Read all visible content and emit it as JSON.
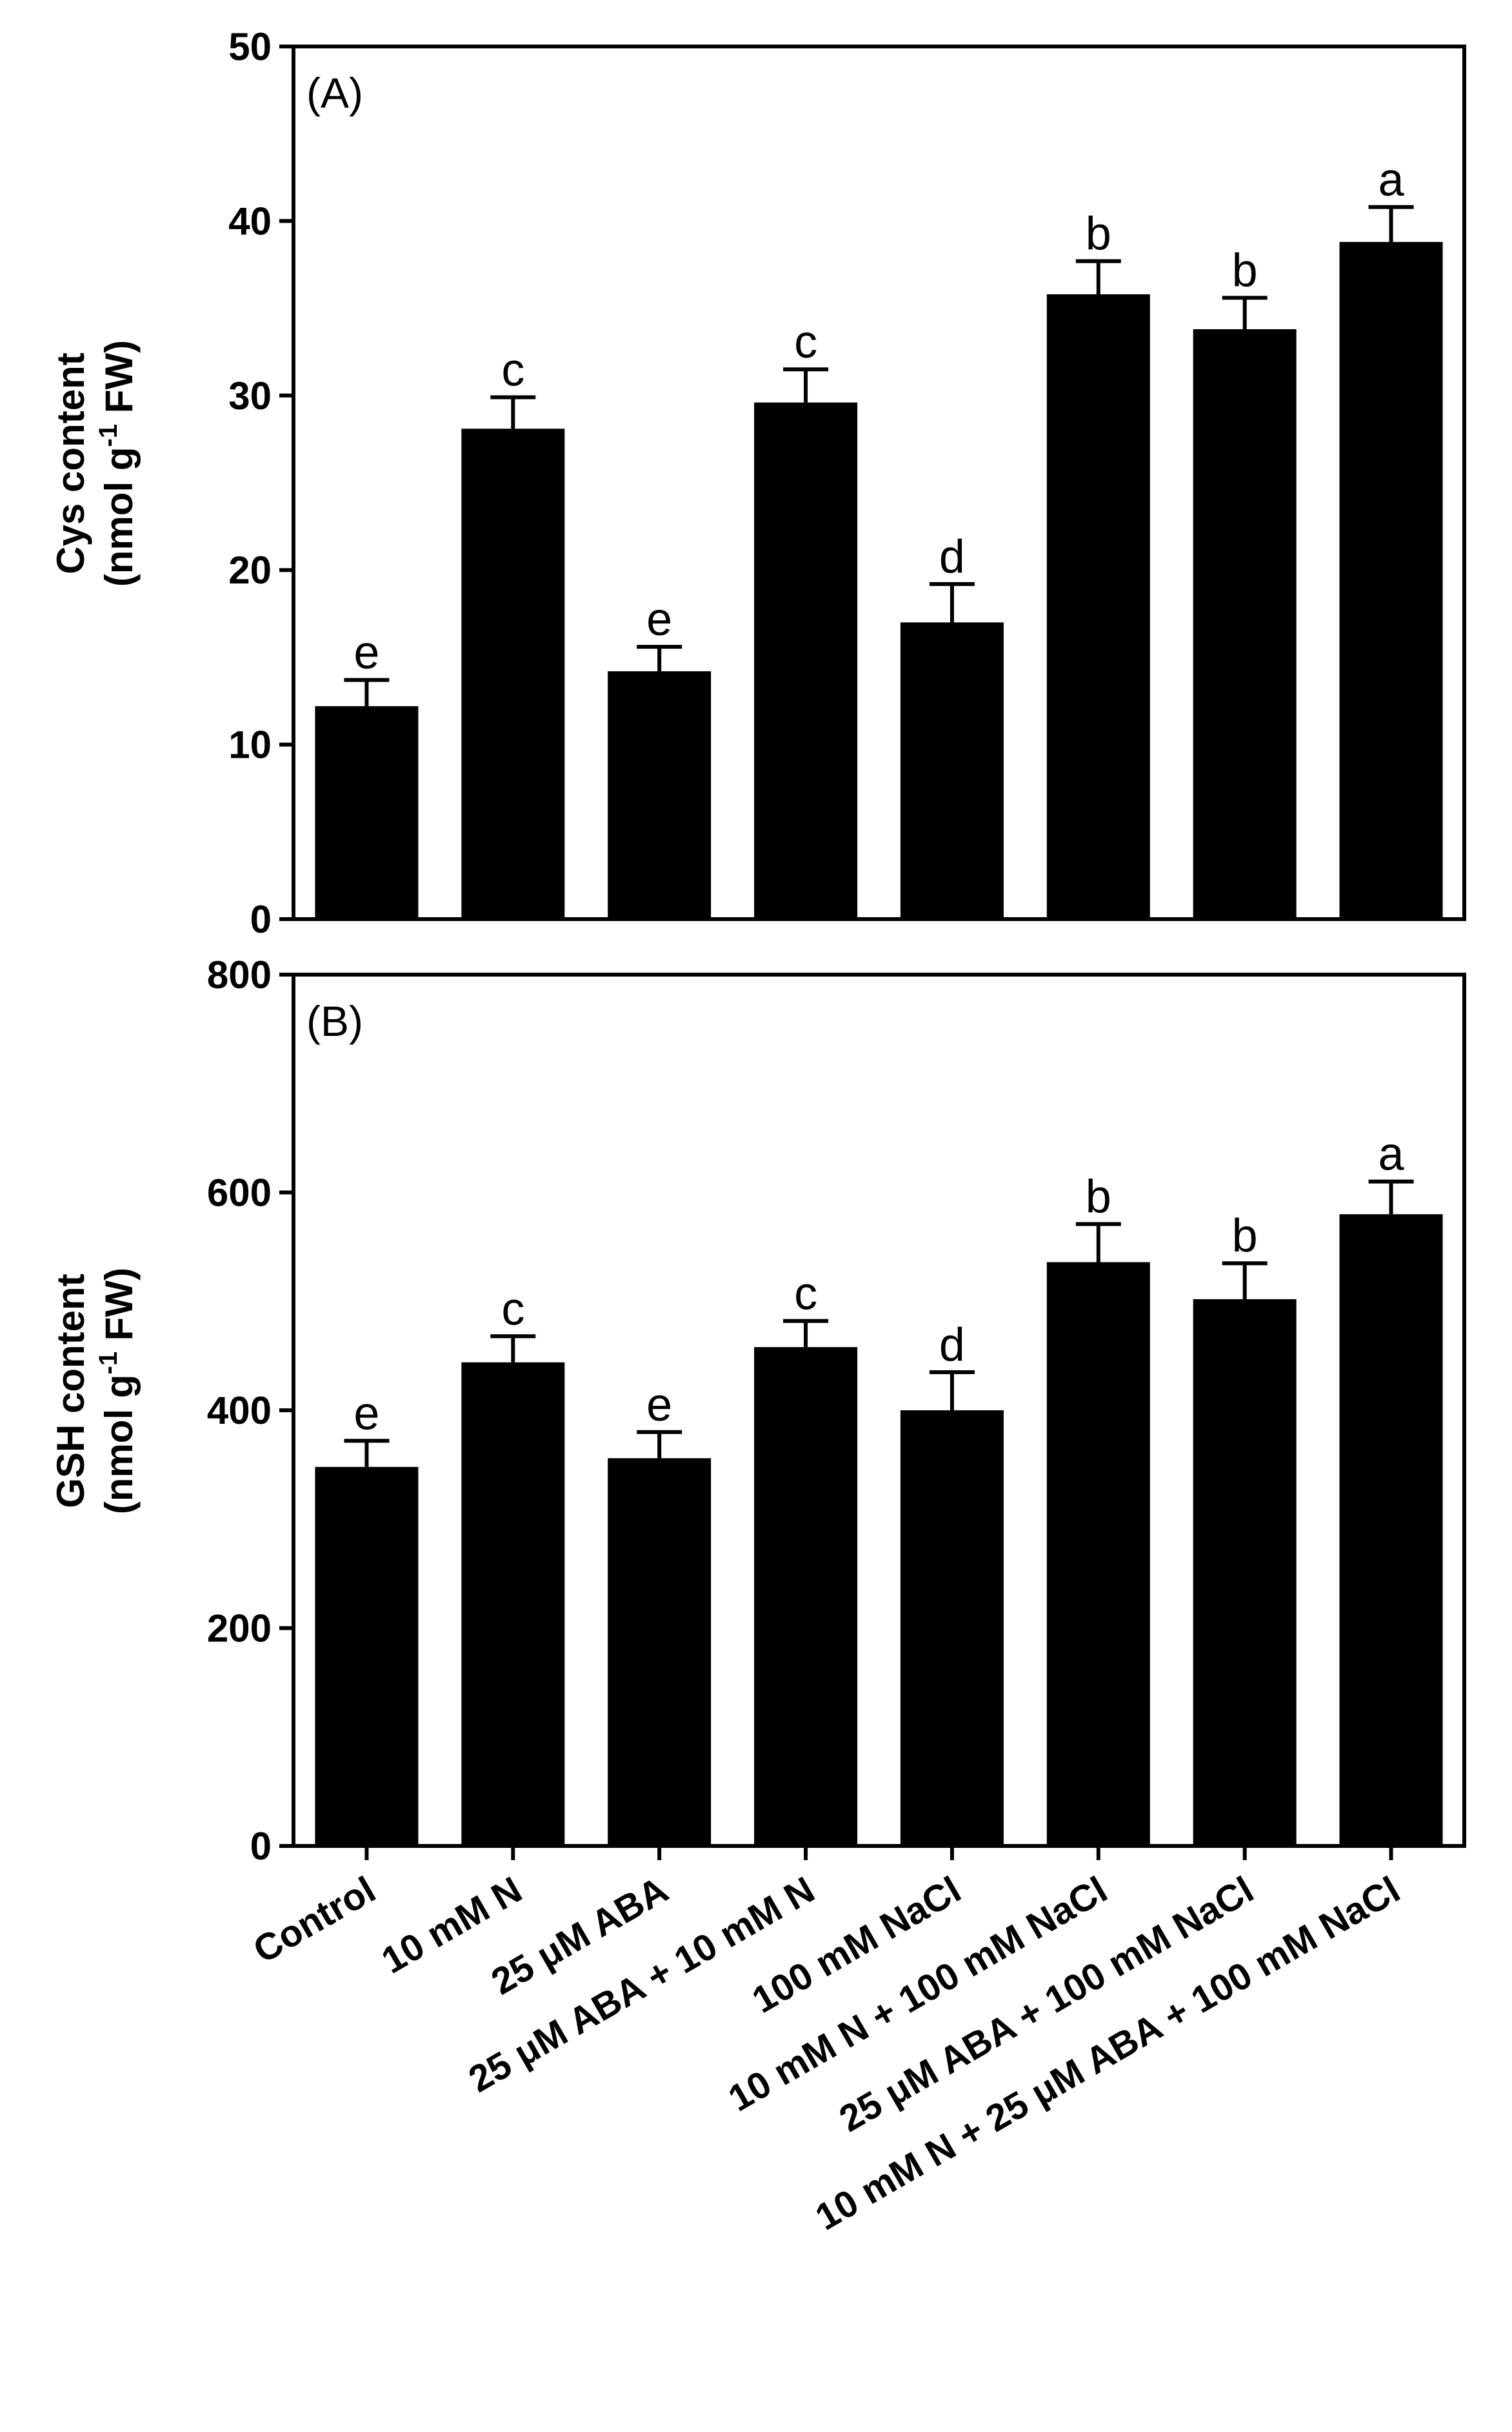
{
  "figure": {
    "categories": [
      "Control",
      "10 mM N",
      "25 μM ABA",
      "25 μM ABA + 10 mM N",
      "100 mM NaCl",
      "10 mM N + 100 mM NaCl",
      "25 μM ABA + 100 mM NaCl",
      "10 mM N + 25 μM ABA + 100 mM NaCl"
    ]
  },
  "chart_data": [
    {
      "type": "bar",
      "panel_label": "(A)",
      "ylabel_line1": "Cys content",
      "ylabel_line2": "(nmol g",
      "ylabel_sup": "-1",
      "ylabel_line2_end": " FW)",
      "ylim": [
        0,
        50
      ],
      "yticks": [
        0,
        10,
        20,
        30,
        40,
        50
      ],
      "ytick_labels": [
        "0",
        "10",
        "20",
        "30",
        "40",
        "50"
      ],
      "values": [
        12.2,
        28.1,
        14.2,
        29.6,
        17.0,
        35.8,
        33.8,
        38.8
      ],
      "errors": [
        1.5,
        1.8,
        1.4,
        1.9,
        2.2,
        1.9,
        1.8,
        2.0
      ],
      "letters": [
        "e",
        "c",
        "e",
        "c",
        "d",
        "b",
        "b",
        "a"
      ],
      "bar_color": "#000000"
    },
    {
      "type": "bar",
      "panel_label": "(B)",
      "ylabel_line1": "GSH content",
      "ylabel_line2": "(nmol g",
      "ylabel_sup": "-1",
      "ylabel_line2_end": " FW)",
      "ylim": [
        0,
        800
      ],
      "yticks": [
        0,
        200,
        400,
        600,
        800
      ],
      "ytick_labels": [
        "0",
        "200",
        "400",
        "600",
        "800"
      ],
      "values": [
        348,
        444,
        356,
        458,
        400,
        536,
        502,
        580
      ],
      "errors": [
        24,
        24,
        24,
        24,
        35,
        35,
        33,
        30
      ],
      "letters": [
        "e",
        "c",
        "e",
        "c",
        "d",
        "b",
        "b",
        "a"
      ],
      "bar_color": "#000000"
    }
  ]
}
